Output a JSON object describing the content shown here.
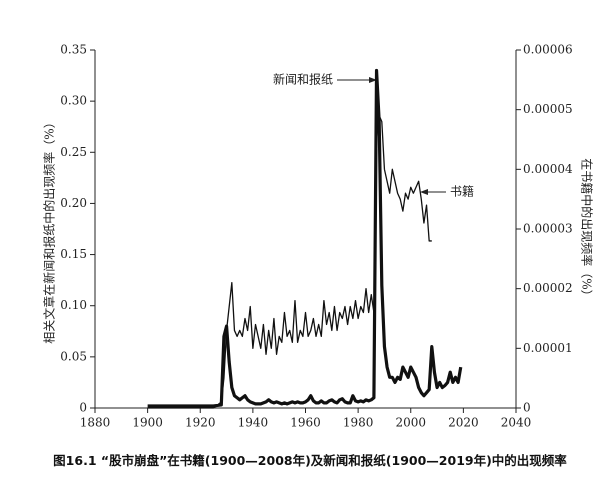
{
  "chart_data": {
    "type": "line",
    "caption": "图16.1 “股市崩盘”在书籍(1900—2008年)及新闻和报纸(1900—2019年)中的出现频率",
    "ylabel": "相关文章在新闻和报纸中的出现频率（%）",
    "y2label": "在书籍中的出现频率（%）",
    "xlim": [
      1880,
      2040
    ],
    "xticks": [
      1880,
      1900,
      1920,
      1940,
      1960,
      1980,
      2000,
      2020,
      2040
    ],
    "ylim": [
      0,
      0.35
    ],
    "yticks": [
      0,
      0.05,
      {
        "value": 0.1,
        "label": "0.10"
      },
      0.15,
      {
        "value": 0.2,
        "label": "0.20"
      },
      0.25,
      {
        "value": 0.3,
        "label": "0.30"
      },
      0.35
    ],
    "y2lim": [
      0,
      6e-05
    ],
    "y2ticks": [
      0,
      1e-05,
      2e-05,
      3e-05,
      4e-05,
      5e-05,
      6e-05
    ],
    "series": [
      {
        "name": "新闻和报纸",
        "color": "#111111",
        "width": 3.2,
        "x": [
          1900,
          1905,
          1910,
          1915,
          1920,
          1925,
          1928,
          1929,
          1930,
          1931,
          1932,
          1933,
          1934,
          1935,
          1936,
          1937,
          1938,
          1939,
          1940,
          1941,
          1942,
          1943,
          1944,
          1945,
          1946,
          1947,
          1948,
          1949,
          1950,
          1951,
          1952,
          1953,
          1954,
          1955,
          1956,
          1957,
          1958,
          1959,
          1960,
          1961,
          1962,
          1963,
          1964,
          1965,
          1966,
          1967,
          1968,
          1969,
          1970,
          1971,
          1972,
          1973,
          1974,
          1975,
          1976,
          1977,
          1978,
          1979,
          1980,
          1981,
          1982,
          1983,
          1984,
          1985,
          1986,
          1987,
          1988,
          1989,
          1990,
          1991,
          1992,
          1993,
          1994,
          1995,
          1996,
          1997,
          1998,
          1999,
          2000,
          2001,
          2002,
          2003,
          2004,
          2005,
          2006,
          2007,
          2008,
          2009,
          2010,
          2011,
          2012,
          2013,
          2014,
          2015,
          2016,
          2017,
          2018,
          2019
        ],
        "values": [
          0.002,
          0.002,
          0.002,
          0.002,
          0.002,
          0.002,
          0.003,
          0.07,
          0.08,
          0.045,
          0.02,
          0.012,
          0.01,
          0.008,
          0.01,
          0.012,
          0.008,
          0.006,
          0.005,
          0.004,
          0.004,
          0.004,
          0.005,
          0.006,
          0.008,
          0.006,
          0.005,
          0.006,
          0.005,
          0.004,
          0.005,
          0.004,
          0.005,
          0.006,
          0.005,
          0.006,
          0.005,
          0.005,
          0.006,
          0.008,
          0.012,
          0.007,
          0.005,
          0.005,
          0.007,
          0.005,
          0.005,
          0.007,
          0.008,
          0.006,
          0.005,
          0.008,
          0.009,
          0.006,
          0.005,
          0.005,
          0.012,
          0.007,
          0.006,
          0.007,
          0.006,
          0.008,
          0.007,
          0.008,
          0.01,
          0.33,
          0.28,
          0.12,
          0.06,
          0.04,
          0.03,
          0.03,
          0.025,
          0.03,
          0.028,
          0.04,
          0.035,
          0.03,
          0.04,
          0.035,
          0.03,
          0.02,
          0.015,
          0.012,
          0.015,
          0.018,
          0.06,
          0.035,
          0.02,
          0.025,
          0.02,
          0.022,
          0.025,
          0.035,
          0.025,
          0.03,
          0.025,
          0.04
        ]
      },
      {
        "name": "书籍",
        "color": "#111111",
        "width": 1.3,
        "axis": "y2",
        "x": [
          1900,
          1905,
          1910,
          1915,
          1920,
          1925,
          1928,
          1929,
          1930,
          1931,
          1932,
          1933,
          1934,
          1935,
          1936,
          1937,
          1938,
          1939,
          1940,
          1941,
          1942,
          1943,
          1944,
          1945,
          1946,
          1947,
          1948,
          1949,
          1950,
          1951,
          1952,
          1953,
          1954,
          1955,
          1956,
          1957,
          1958,
          1959,
          1960,
          1961,
          1962,
          1963,
          1964,
          1965,
          1966,
          1967,
          1968,
          1969,
          1970,
          1971,
          1972,
          1973,
          1974,
          1975,
          1976,
          1977,
          1978,
          1979,
          1980,
          1981,
          1982,
          1983,
          1984,
          1985,
          1986,
          1987,
          1988,
          1989,
          1990,
          1991,
          1992,
          1993,
          1994,
          1995,
          1996,
          1997,
          1998,
          1999,
          2000,
          2001,
          2002,
          2003,
          2004,
          2005,
          2006,
          2007,
          2008
        ],
        "values": [
          0,
          0,
          0,
          0,
          0,
          0,
          1e-06,
          5e-06,
          1.3e-05,
          1.7e-05,
          2.1e-05,
          1.3e-05,
          1.2e-05,
          1.3e-05,
          1.2e-05,
          1.5e-05,
          1.3e-05,
          1.7e-05,
          1e-05,
          1.4e-05,
          1.2e-05,
          1e-05,
          1.4e-05,
          9e-06,
          1.3e-05,
          1e-05,
          1.5e-05,
          9e-06,
          1.2e-05,
          1.1e-05,
          1.6e-05,
          1.2e-05,
          1.3e-05,
          1.1e-05,
          1.8e-05,
          1.1e-05,
          1.3e-05,
          1.2e-05,
          1.6e-05,
          1.2e-05,
          1.3e-05,
          1.5e-05,
          1.2e-05,
          1.4e-05,
          1.2e-05,
          1.8e-05,
          1.4e-05,
          1.6e-05,
          1.3e-05,
          1.7e-05,
          1.3e-05,
          1.6e-05,
          1.5e-05,
          1.7e-05,
          1.4e-05,
          1.7e-05,
          1.5e-05,
          1.8e-05,
          1.5e-05,
          1.7e-05,
          1.6e-05,
          2e-05,
          1.6e-05,
          1.9e-05,
          1.6e-05,
          4.5e-05,
          4.9e-05,
          4.8e-05,
          4e-05,
          3.8e-05,
          3.6e-05,
          4e-05,
          3.8e-05,
          3.6e-05,
          3.5e-05,
          3.3e-05,
          3.6e-05,
          3.5e-05,
          3.7e-05,
          3.6e-05,
          3.7e-05,
          3.8e-05,
          3.5e-05,
          3.1e-05,
          3.4e-05,
          2.8e-05,
          2.8e-05
        ]
      }
    ]
  }
}
